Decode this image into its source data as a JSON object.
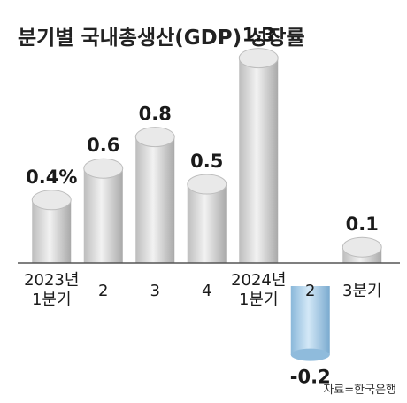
{
  "title": "분기별 국내총생산(GDP) 성장률",
  "source": "자료=한국은행",
  "chart_data": {
    "type": "bar",
    "title": "분기별 국내총생산(GDP) 성장률",
    "categories": [
      [
        "2023년",
        "1분기"
      ],
      [
        "2"
      ],
      [
        "3"
      ],
      [
        "4"
      ],
      [
        "2024년",
        "1분기"
      ],
      [
        "2"
      ],
      [
        "3분기"
      ]
    ],
    "value_labels": [
      "0.4%",
      "0.6",
      "0.8",
      "0.5",
      "1.3",
      "-0.2",
      "0.1"
    ],
    "values": [
      0.4,
      0.6,
      0.8,
      0.5,
      1.3,
      -0.2,
      0.1
    ],
    "ylim": [
      -0.4,
      1.4
    ],
    "grid": false,
    "colors": {
      "positive": "#cfcfcf",
      "negative": "#9cc8e8",
      "baseline": "#555555"
    }
  }
}
